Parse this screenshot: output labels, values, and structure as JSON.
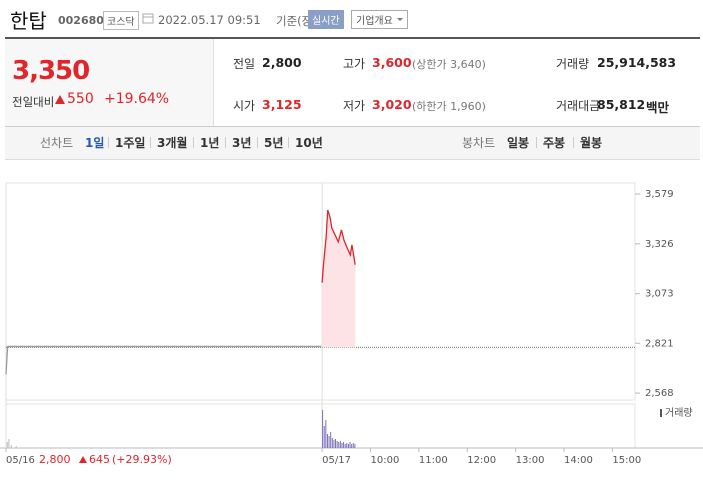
{
  "header": {
    "name": "한탑",
    "code": "002680",
    "market": "코스닥",
    "datetime": "2022.05.17 09:51",
    "basis": "기준(장중)",
    "realtime": "실시간",
    "company_info": "기업개요"
  },
  "quote": {
    "current": "3,350",
    "change_label": "전일대비",
    "change": "550",
    "change_pct": "+19.64%"
  },
  "summary": [
    {
      "label": "전일",
      "value": "2,800"
    },
    {
      "label": "고가",
      "value": "3,600",
      "note": "(상한가 3,640)"
    },
    {
      "label": "거래량",
      "value": "25,914,583"
    },
    {
      "label": "시가",
      "value": "3,125"
    },
    {
      "label": "저가",
      "value": "3,020",
      "note": "(하한가 1,960)"
    },
    {
      "label": "거래대금",
      "value": "85,812",
      "unit": "백만"
    }
  ],
  "chart_tabs": {
    "line_label": "선차트",
    "line": [
      "1일",
      "1주일",
      "3개월",
      "1년",
      "3년",
      "5년",
      "10년"
    ],
    "candle_label": "봉차트",
    "candle": [
      "일봉",
      "주봉",
      "월봉"
    ]
  },
  "prev_day": {
    "close": "2,800",
    "change": "645",
    "change_pct": "(+29.93%)"
  },
  "chart_data": {
    "type": "line",
    "xlim": [
      -392,
      388
    ],
    "xticks": [
      {
        "value": -392,
        "label": "05/16"
      },
      {
        "value": 0,
        "label": "05/17"
      },
      {
        "value": 60,
        "label": "10:00"
      },
      {
        "value": 120,
        "label": "11:00"
      },
      {
        "value": 180,
        "label": "12:00"
      },
      {
        "value": 240,
        "label": "13:00"
      },
      {
        "value": 300,
        "label": "14:00"
      },
      {
        "value": 360,
        "label": "15:00"
      }
    ],
    "ylim": [
      2533,
      3635
    ],
    "yticks": [
      {
        "value": 3579,
        "label": "3,579"
      },
      {
        "value": 3326,
        "label": "3,326"
      },
      {
        "value": 3073,
        "label": "3,073"
      },
      {
        "value": 2821,
        "label": "2,821"
      },
      {
        "value": 2568,
        "label": "2,568"
      }
    ],
    "reference_line": 2800,
    "series": [
      {
        "color": "#999999",
        "x": [
          -392,
          -390,
          -1
        ],
        "values": [
          2663,
          2805,
          2805
        ]
      },
      {
        "color": "#e0252b",
        "fill": "#fde3e6",
        "x": [
          0,
          2,
          5,
          7,
          10,
          12,
          16,
          20,
          24,
          27,
          31,
          35,
          37,
          41
        ],
        "values": [
          3129,
          3235,
          3361,
          3498,
          3458,
          3407,
          3372,
          3336,
          3397,
          3346,
          3306,
          3270,
          3321,
          3220
        ]
      }
    ],
    "volume": {
      "label": "거래량",
      "ylim": [
        0,
        4000000
      ],
      "series": [
        {
          "color": "#bbbbbb",
          "x": [
            -391,
            -389,
            -386,
            -380
          ],
          "values": [
            600000,
            900000,
            300000,
            200000
          ]
        },
        {
          "color": "#7b6fb8",
          "x": [
            0,
            2,
            4,
            6,
            8,
            10,
            12,
            14,
            16,
            18,
            20,
            22,
            24,
            26,
            28,
            30,
            32,
            34,
            36,
            38,
            40
          ],
          "values": [
            3800000,
            2200000,
            2800000,
            1400000,
            1200000,
            1600000,
            1000000,
            800000,
            900000,
            700000,
            600000,
            700000,
            500000,
            600000,
            400000,
            500000,
            400000,
            600000,
            400000,
            500000,
            400000
          ]
        }
      ]
    }
  }
}
